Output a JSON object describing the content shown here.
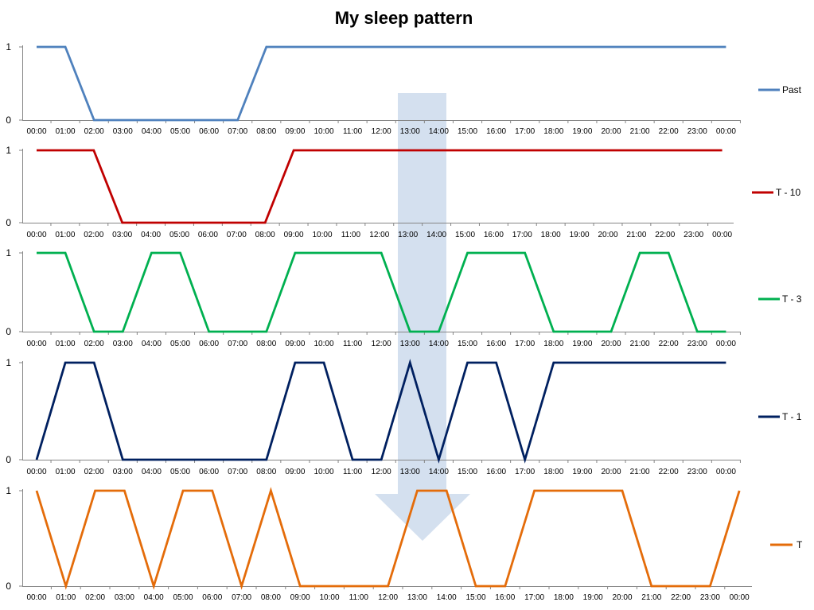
{
  "title": "My sleep pattern",
  "chart_data": [
    {
      "type": "line",
      "name": "Past",
      "color": "#4F81BD",
      "x": [
        "00:00",
        "01:00",
        "02:00",
        "03:00",
        "04:00",
        "05:00",
        "06:00",
        "07:00",
        "08:00",
        "09:00",
        "10:00",
        "11:00",
        "12:00",
        "13:00",
        "14:00",
        "15:00",
        "16:00",
        "17:00",
        "18:00",
        "19:00",
        "20:00",
        "21:00",
        "22:00",
        "23:00",
        "00:00"
      ],
      "values": [
        1,
        1,
        0,
        0,
        0,
        0,
        0,
        0,
        1,
        1,
        1,
        1,
        1,
        1,
        1,
        1,
        1,
        1,
        1,
        1,
        1,
        1,
        1,
        1,
        1
      ],
      "yticks": [
        "1",
        "0"
      ],
      "ylim": [
        0,
        1
      ],
      "legend": "Past"
    },
    {
      "type": "line",
      "name": "T - 10",
      "color": "#C00000",
      "x": [
        "00:00",
        "01:00",
        "02:00",
        "03:00",
        "04:00",
        "05:00",
        "06:00",
        "07:00",
        "08:00",
        "09:00",
        "10:00",
        "11:00",
        "12:00",
        "13:00",
        "14:00",
        "15:00",
        "16:00",
        "17:00",
        "18:00",
        "19:00",
        "20:00",
        "21:00",
        "22:00",
        "23:00",
        "00:00"
      ],
      "values": [
        1,
        1,
        1,
        0,
        0,
        0,
        0,
        0,
        0,
        1,
        1,
        1,
        1,
        1,
        1,
        1,
        1,
        1,
        1,
        1,
        1,
        1,
        1,
        1,
        1
      ],
      "yticks": [
        "1",
        "0"
      ],
      "ylim": [
        0,
        1
      ],
      "legend": "T - 10"
    },
    {
      "type": "line",
      "name": "T - 3",
      "color": "#00B050",
      "x": [
        "00:00",
        "01:00",
        "02:00",
        "03:00",
        "04:00",
        "05:00",
        "06:00",
        "07:00",
        "08:00",
        "09:00",
        "10:00",
        "11:00",
        "12:00",
        "13:00",
        "14:00",
        "15:00",
        "16:00",
        "17:00",
        "18:00",
        "19:00",
        "20:00",
        "21:00",
        "22:00",
        "23:00",
        "00:00"
      ],
      "values": [
        1,
        1,
        0,
        0,
        1,
        1,
        0,
        0,
        0,
        1,
        1,
        1,
        1,
        0,
        0,
        1,
        1,
        1,
        0,
        0,
        0,
        1,
        1,
        0,
        0
      ],
      "yticks": [
        "1",
        "0"
      ],
      "ylim": [
        0,
        1
      ],
      "legend": "T - 3"
    },
    {
      "type": "line",
      "name": "T - 1",
      "color": "#002060",
      "x": [
        "00:00",
        "01:00",
        "02:00",
        "03:00",
        "04:00",
        "05:00",
        "06:00",
        "07:00",
        "08:00",
        "09:00",
        "10:00",
        "11:00",
        "12:00",
        "13:00",
        "14:00",
        "15:00",
        "16:00",
        "17:00",
        "18:00",
        "19:00",
        "20:00",
        "21:00",
        "22:00",
        "23:00",
        "00:00"
      ],
      "values": [
        0,
        1,
        1,
        0,
        0,
        0,
        0,
        0,
        0,
        1,
        1,
        0,
        0,
        1,
        0,
        1,
        1,
        0,
        1,
        1,
        1,
        1,
        1,
        1,
        1
      ],
      "yticks": [
        "1",
        "0"
      ],
      "ylim": [
        0,
        1
      ],
      "legend": "T - 1"
    },
    {
      "type": "line",
      "name": "T",
      "color": "#E46C0A",
      "x": [
        "00:00",
        "01:00",
        "02:00",
        "03:00",
        "04:00",
        "05:00",
        "06:00",
        "07:00",
        "08:00",
        "09:00",
        "10:00",
        "11:00",
        "12:00",
        "13:00",
        "14:00",
        "15:00",
        "16:00",
        "17:00",
        "18:00",
        "19:00",
        "20:00",
        "21:00",
        "22:00",
        "23:00",
        "00:00"
      ],
      "values": [
        1,
        0,
        1,
        1,
        0,
        1,
        1,
        0,
        1,
        0,
        0,
        0,
        0,
        1,
        1,
        0,
        0,
        1,
        1,
        1,
        1,
        0,
        0,
        0,
        1
      ],
      "yticks": [
        "1",
        "0"
      ],
      "ylim": [
        0,
        1
      ],
      "legend": "T"
    }
  ],
  "arrow_color": "#C6D5EA"
}
